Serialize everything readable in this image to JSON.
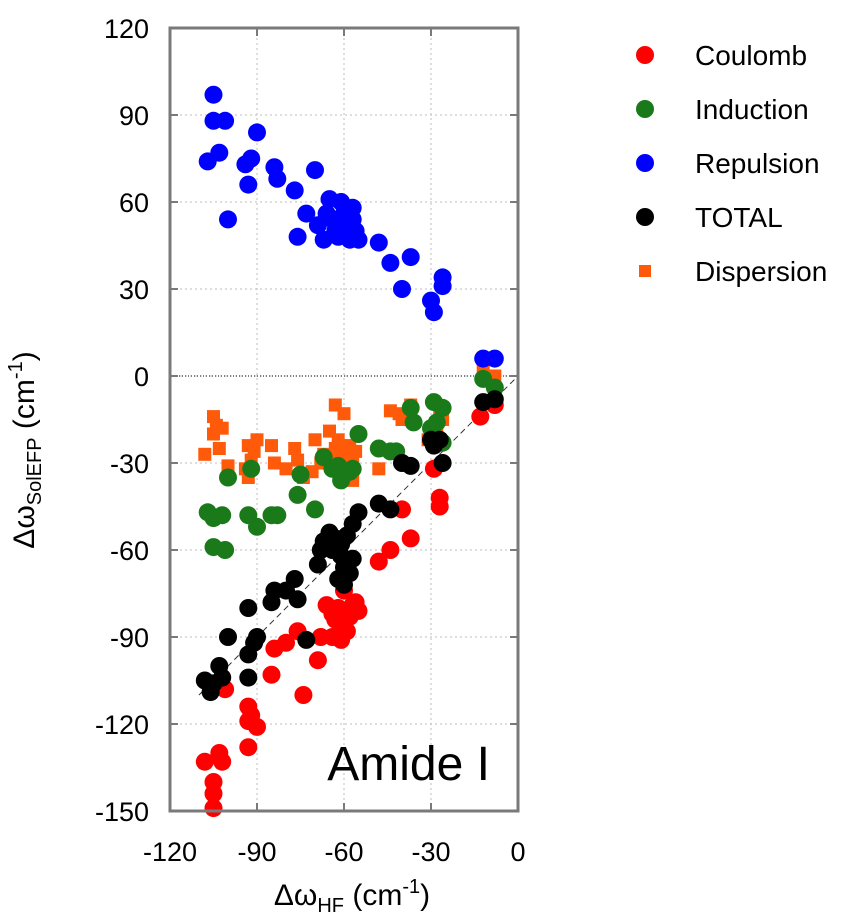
{
  "chart_data": {
    "type": "scatter",
    "xlabel": {
      "prefix": "Δω",
      "sub": "HF",
      "unit_open": " (cm",
      "sup": "-1",
      "unit_close": ")"
    },
    "ylabel": {
      "prefix": "Δω",
      "sub": "SolEFP",
      "unit_open": " (cm",
      "sup": "-1",
      "unit_close": ")"
    },
    "xlim": [
      -120,
      0
    ],
    "ylim": [
      -150,
      120
    ],
    "xticks": [
      -120,
      -90,
      -60,
      -30,
      0
    ],
    "yticks": [
      120,
      90,
      60,
      30,
      0,
      -30,
      -60,
      -90,
      -120,
      -150
    ],
    "xtick_labels": [
      "-120",
      "-90",
      "-60",
      "-30",
      "0"
    ],
    "ytick_labels": [
      "120",
      "90",
      "60",
      "30",
      "0",
      "-30",
      "-60",
      "-90",
      "-120",
      "-150"
    ],
    "grid": true,
    "diagonal_reference": true,
    "zero_line": true,
    "annotation": "Amide I",
    "legend_position": "outside-right",
    "series": [
      {
        "name": "Coulomb",
        "color": "#ff0000",
        "marker": "circle",
        "points": [
          [
            -108,
            -133
          ],
          [
            -105,
            -140
          ],
          [
            -105,
            -144
          ],
          [
            -105,
            -149
          ],
          [
            -103,
            -130
          ],
          [
            -102,
            -133
          ],
          [
            -101,
            -108
          ],
          [
            -93,
            -114
          ],
          [
            -93,
            -119
          ],
          [
            -93,
            -128
          ],
          [
            -92,
            -117
          ],
          [
            -90,
            -121
          ],
          [
            -85,
            -103
          ],
          [
            -84,
            -94
          ],
          [
            -80,
            -92
          ],
          [
            -76,
            -88
          ],
          [
            -74,
            -110
          ],
          [
            -69,
            -98
          ],
          [
            -68,
            -90
          ],
          [
            -66,
            -79
          ],
          [
            -64,
            -90
          ],
          [
            -64,
            -82
          ],
          [
            -63,
            -84
          ],
          [
            -62,
            -80
          ],
          [
            -61,
            -91
          ],
          [
            -60,
            -86
          ],
          [
            -60,
            -74
          ],
          [
            -59,
            -88
          ],
          [
            -58,
            -83
          ],
          [
            -57,
            -79
          ],
          [
            -56,
            -78
          ],
          [
            -55,
            -81
          ],
          [
            -48,
            -64
          ],
          [
            -44,
            -60
          ],
          [
            -40,
            -46
          ],
          [
            -37,
            -56
          ],
          [
            -29,
            -32
          ],
          [
            -27,
            -42
          ],
          [
            -27,
            -45
          ],
          [
            -13,
            -14
          ],
          [
            -8,
            -10
          ]
        ]
      },
      {
        "name": "Induction",
        "color": "#1a7a1a",
        "marker": "circle",
        "points": [
          [
            -107,
            -47
          ],
          [
            -105,
            -59
          ],
          [
            -105,
            -49
          ],
          [
            -102,
            -48
          ],
          [
            -101,
            -60
          ],
          [
            -100,
            -35
          ],
          [
            -93,
            -48
          ],
          [
            -92,
            -32
          ],
          [
            -90,
            -52
          ],
          [
            -85,
            -48
          ],
          [
            -83,
            -48
          ],
          [
            -76,
            -41
          ],
          [
            -75,
            -34
          ],
          [
            -70,
            -46
          ],
          [
            -67,
            -28
          ],
          [
            -64,
            -32
          ],
          [
            -62,
            -31
          ],
          [
            -61,
            -36
          ],
          [
            -60,
            -34
          ],
          [
            -58,
            -33
          ],
          [
            -57,
            -32
          ],
          [
            -55,
            -20
          ],
          [
            -48,
            -25
          ],
          [
            -44,
            -26
          ],
          [
            -42,
            -26
          ],
          [
            -37,
            -11
          ],
          [
            -36,
            -16
          ],
          [
            -30,
            -18
          ],
          [
            -29,
            -9
          ],
          [
            -29,
            -22
          ],
          [
            -28,
            -16
          ],
          [
            -26,
            -11
          ],
          [
            -26,
            -23
          ],
          [
            -12,
            -1
          ],
          [
            -8,
            -4
          ]
        ]
      },
      {
        "name": "Repulsion",
        "color": "#0000ff",
        "marker": "circle",
        "points": [
          [
            -107,
            74
          ],
          [
            -105,
            97
          ],
          [
            -105,
            88
          ],
          [
            -103,
            77
          ],
          [
            -101,
            88
          ],
          [
            -100,
            54
          ],
          [
            -94,
            73
          ],
          [
            -93,
            66
          ],
          [
            -92,
            75
          ],
          [
            -90,
            84
          ],
          [
            -84,
            72
          ],
          [
            -83,
            68
          ],
          [
            -77,
            64
          ],
          [
            -76,
            48
          ],
          [
            -73,
            56
          ],
          [
            -70,
            71
          ],
          [
            -69,
            52
          ],
          [
            -67,
            47
          ],
          [
            -66,
            56
          ],
          [
            -65,
            61
          ],
          [
            -64,
            54
          ],
          [
            -63,
            50
          ],
          [
            -62,
            48
          ],
          [
            -61,
            60
          ],
          [
            -61,
            53
          ],
          [
            -60,
            56
          ],
          [
            -59,
            51
          ],
          [
            -58,
            47
          ],
          [
            -57,
            54
          ],
          [
            -57,
            58
          ],
          [
            -56,
            50
          ],
          [
            -55,
            47
          ],
          [
            -48,
            46
          ],
          [
            -44,
            39
          ],
          [
            -40,
            30
          ],
          [
            -37,
            41
          ],
          [
            -30,
            26
          ],
          [
            -29,
            22
          ],
          [
            -26,
            34
          ],
          [
            -26,
            31
          ],
          [
            -12,
            6
          ],
          [
            -8,
            6
          ]
        ]
      },
      {
        "name": "TOTAL",
        "color": "#000000",
        "marker": "circle",
        "points": [
          [
            -108,
            -105
          ],
          [
            -106,
            -109
          ],
          [
            -105,
            -106
          ],
          [
            -103,
            -100
          ],
          [
            -102,
            -104
          ],
          [
            -100,
            -90
          ],
          [
            -93,
            -96
          ],
          [
            -93,
            -80
          ],
          [
            -93,
            -104
          ],
          [
            -91,
            -92
          ],
          [
            -90,
            -90
          ],
          [
            -85,
            -78
          ],
          [
            -84,
            -74
          ],
          [
            -80,
            -74
          ],
          [
            -77,
            -70
          ],
          [
            -76,
            -77
          ],
          [
            -73,
            -91
          ],
          [
            -69,
            -65
          ],
          [
            -68,
            -60
          ],
          [
            -67,
            -57
          ],
          [
            -65,
            -54
          ],
          [
            -64,
            -60
          ],
          [
            -63,
            -56
          ],
          [
            -62,
            -70
          ],
          [
            -61,
            -58
          ],
          [
            -61,
            -62
          ],
          [
            -60,
            -66
          ],
          [
            -60,
            -72
          ],
          [
            -59,
            -55
          ],
          [
            -58,
            -68
          ],
          [
            -57,
            -51
          ],
          [
            -57,
            -63
          ],
          [
            -55,
            -47
          ],
          [
            -48,
            -44
          ],
          [
            -44,
            -46
          ],
          [
            -40,
            -30
          ],
          [
            -37,
            -31
          ],
          [
            -30,
            -22
          ],
          [
            -29,
            -24
          ],
          [
            -27,
            -22
          ],
          [
            -26,
            -30
          ],
          [
            -12,
            -9
          ],
          [
            -8,
            -8
          ]
        ]
      },
      {
        "name": "Dispersion",
        "color": "#ff5a0a",
        "marker": "square",
        "points": [
          [
            -108,
            -27
          ],
          [
            -105,
            -14
          ],
          [
            -105,
            -20
          ],
          [
            -104,
            -17
          ],
          [
            -103,
            -25
          ],
          [
            -102,
            -18
          ],
          [
            -100,
            -31
          ],
          [
            -94,
            -32
          ],
          [
            -93,
            -24
          ],
          [
            -93,
            -35
          ],
          [
            -92,
            -29
          ],
          [
            -91,
            -26
          ],
          [
            -90,
            -22
          ],
          [
            -85,
            -24
          ],
          [
            -84,
            -30
          ],
          [
            -80,
            -32
          ],
          [
            -77,
            -25
          ],
          [
            -76,
            -29
          ],
          [
            -74,
            -35
          ],
          [
            -71,
            -33
          ],
          [
            -70,
            -22
          ],
          [
            -68,
            -30
          ],
          [
            -67,
            -27
          ],
          [
            -65,
            -28
          ],
          [
            -65,
            -19
          ],
          [
            -64,
            -31
          ],
          [
            -63,
            -10
          ],
          [
            -63,
            -25
          ],
          [
            -62,
            -22
          ],
          [
            -61,
            -28
          ],
          [
            -61,
            -24
          ],
          [
            -60,
            -13
          ],
          [
            -60,
            -30
          ],
          [
            -59,
            -27
          ],
          [
            -58,
            -24
          ],
          [
            -58,
            -34
          ],
          [
            -57,
            -29
          ],
          [
            -57,
            -36
          ],
          [
            -56,
            -26
          ],
          [
            -48,
            -32
          ],
          [
            -44,
            -12
          ],
          [
            -41,
            -13
          ],
          [
            -40,
            -15
          ],
          [
            -37,
            -10
          ],
          [
            -31,
            -22
          ],
          [
            -28,
            -17
          ],
          [
            -27,
            -12
          ],
          [
            -26,
            -15
          ],
          [
            -12,
            2
          ],
          [
            -8,
            0
          ]
        ]
      }
    ]
  }
}
